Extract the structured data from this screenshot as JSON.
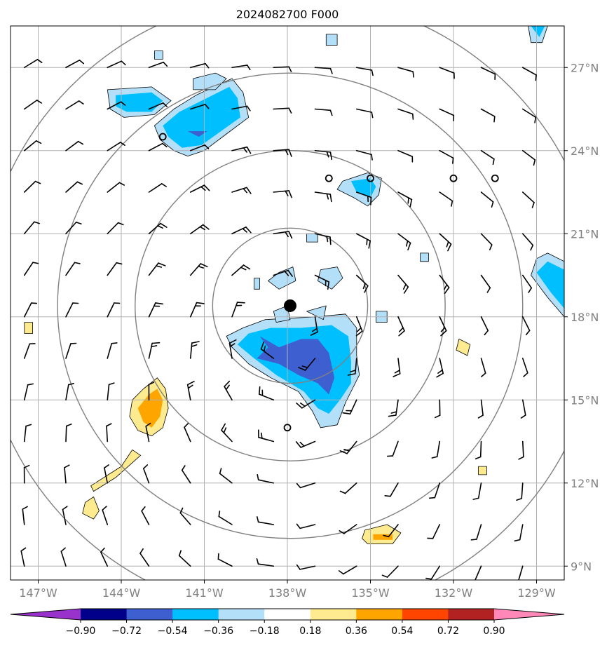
{
  "chart_data": {
    "type": "map",
    "title": "2024082700 F000",
    "lon_range": [
      -148,
      -128
    ],
    "lat_range": [
      8.5,
      28.5
    ],
    "lon_ticks": [
      -147,
      -144,
      -141,
      -138,
      -135,
      -132,
      -129
    ],
    "lon_tick_labels": [
      "147°W",
      "144°W",
      "141°W",
      "138°W",
      "135°W",
      "132°W",
      "129°W"
    ],
    "lat_ticks": [
      9,
      12,
      15,
      18,
      21,
      24,
      27
    ],
    "lat_tick_labels": [
      "9°N",
      "12°N",
      "15°N",
      "18°N",
      "21°N",
      "24°N",
      "27°N"
    ],
    "grid": true,
    "storm_center": {
      "lon": -137.9,
      "lat": 18.4
    },
    "range_ring_radii_deg": [
      2.8,
      5.6,
      8.4,
      11.2
    ],
    "colorbar": {
      "levels": [
        -0.9,
        -0.72,
        -0.54,
        -0.36,
        -0.18,
        0.18,
        0.36,
        0.54,
        0.72,
        0.9
      ],
      "level_labels": [
        "−0.90",
        "−0.72",
        "−0.54",
        "−0.36",
        "−0.18",
        "0.18",
        "0.36",
        "0.54",
        "0.72",
        "0.90"
      ],
      "colors": [
        "#9932cc",
        "#00008b",
        "#3e5fd0",
        "#00bfff",
        "#b3e0f8",
        "#ffffff",
        "#ffeb8f",
        "#ffa500",
        "#ff4500",
        "#b22222",
        "#ff88b8"
      ],
      "extend": "both"
    },
    "shaded_regions": [
      {
        "level": -0.18,
        "pts": [
          [
            -138.8,
            17.9
          ],
          [
            -137.0,
            18.0
          ],
          [
            -135.9,
            18.1
          ],
          [
            -135.5,
            17.6
          ],
          [
            -135.5,
            16.6
          ],
          [
            -135.4,
            15.9
          ],
          [
            -135.6,
            15.5
          ],
          [
            -135.9,
            14.9
          ],
          [
            -136.2,
            14.1
          ],
          [
            -136.8,
            14.0
          ],
          [
            -137.1,
            14.6
          ],
          [
            -137.6,
            15.3
          ],
          [
            -138.6,
            15.8
          ],
          [
            -139.4,
            16.3
          ],
          [
            -140.0,
            16.9
          ],
          [
            -140.2,
            17.3
          ],
          [
            -139.6,
            17.6
          ]
        ]
      },
      {
        "level": -0.36,
        "pts": [
          [
            -138.6,
            17.6
          ],
          [
            -137.5,
            17.6
          ],
          [
            -136.4,
            17.7
          ],
          [
            -135.8,
            17.3
          ],
          [
            -135.7,
            16.4
          ],
          [
            -135.7,
            15.6
          ],
          [
            -136.1,
            15.0
          ],
          [
            -136.5,
            14.5
          ],
          [
            -136.9,
            14.7
          ],
          [
            -137.4,
            15.3
          ],
          [
            -138.4,
            15.9
          ],
          [
            -139.2,
            16.5
          ],
          [
            -139.8,
            17.0
          ],
          [
            -139.4,
            17.4
          ]
        ]
      },
      {
        "level": -0.54,
        "pts": [
          [
            -139.0,
            17.3
          ],
          [
            -138.3,
            16.9
          ],
          [
            -137.5,
            17.2
          ],
          [
            -136.9,
            17.2
          ],
          [
            -136.5,
            16.7
          ],
          [
            -136.3,
            15.8
          ],
          [
            -136.5,
            15.2
          ],
          [
            -136.9,
            15.6
          ],
          [
            -137.6,
            15.9
          ],
          [
            -138.3,
            16.3
          ],
          [
            -139.1,
            16.5
          ],
          [
            -138.7,
            16.9
          ]
        ]
      },
      {
        "level": -0.18,
        "pts": [
          [
            -142.8,
            24.9
          ],
          [
            -142.1,
            25.5
          ],
          [
            -141.3,
            26.0
          ],
          [
            -140.0,
            26.6
          ],
          [
            -139.6,
            26.1
          ],
          [
            -139.4,
            25.2
          ],
          [
            -140.2,
            24.6
          ],
          [
            -141.0,
            24.0
          ],
          [
            -141.6,
            23.8
          ],
          [
            -142.1,
            24.0
          ],
          [
            -142.6,
            24.4
          ]
        ]
      },
      {
        "level": -0.36,
        "pts": [
          [
            -142.5,
            24.9
          ],
          [
            -141.9,
            25.4
          ],
          [
            -141.1,
            25.8
          ],
          [
            -140.1,
            26.3
          ],
          [
            -139.8,
            25.9
          ],
          [
            -139.7,
            25.2
          ],
          [
            -140.4,
            24.7
          ],
          [
            -141.1,
            24.2
          ],
          [
            -141.8,
            24.1
          ],
          [
            -142.3,
            24.5
          ]
        ]
      },
      {
        "level": -0.54,
        "pts": [
          [
            -141.6,
            24.7
          ],
          [
            -140.9,
            24.7
          ],
          [
            -141.2,
            24.5
          ]
        ]
      },
      {
        "level": -0.18,
        "pts": [
          [
            -144.5,
            26.2
          ],
          [
            -142.9,
            26.3
          ],
          [
            -142.2,
            25.8
          ],
          [
            -142.8,
            25.3
          ],
          [
            -143.9,
            25.2
          ],
          [
            -144.4,
            25.5
          ]
        ]
      },
      {
        "level": -0.36,
        "pts": [
          [
            -144.2,
            26.0
          ],
          [
            -142.9,
            26.1
          ],
          [
            -142.5,
            25.8
          ],
          [
            -142.9,
            25.4
          ],
          [
            -143.8,
            25.4
          ],
          [
            -144.2,
            25.6
          ]
        ]
      },
      {
        "level": -0.18,
        "pts": [
          [
            -141.4,
            26.6
          ],
          [
            -140.6,
            26.8
          ],
          [
            -140.2,
            26.6
          ],
          [
            -140.6,
            26.2
          ],
          [
            -141.4,
            26.2
          ]
        ]
      },
      {
        "level": -0.18,
        "pts": [
          [
            -136.0,
            22.9
          ],
          [
            -135.1,
            23.2
          ],
          [
            -134.6,
            23.0
          ],
          [
            -134.7,
            22.4
          ],
          [
            -135.1,
            22.0
          ],
          [
            -135.6,
            22.3
          ],
          [
            -136.2,
            22.6
          ]
        ]
      },
      {
        "level": -0.36,
        "pts": [
          [
            -135.7,
            22.9
          ],
          [
            -135.0,
            23.0
          ],
          [
            -134.8,
            22.7
          ],
          [
            -135.0,
            22.3
          ],
          [
            -135.5,
            22.5
          ]
        ]
      },
      {
        "level": -0.18,
        "pts": [
          [
            -128.6,
            20.3
          ],
          [
            -128.0,
            20.0
          ],
          [
            -128.0,
            18.0
          ],
          [
            -128.6,
            18.7
          ],
          [
            -129.2,
            19.5
          ],
          [
            -129.0,
            20.1
          ]
        ]
      },
      {
        "level": -0.36,
        "pts": [
          [
            -128.6,
            20.0
          ],
          [
            -128.0,
            19.7
          ],
          [
            -128.0,
            18.3
          ],
          [
            -128.5,
            18.9
          ],
          [
            -129.0,
            19.6
          ]
        ]
      },
      {
        "level": -0.18,
        "pts": [
          [
            -129.3,
            28.5
          ],
          [
            -128.6,
            28.5
          ],
          [
            -128.8,
            27.9
          ],
          [
            -129.2,
            27.9
          ]
        ]
      },
      {
        "level": -0.36,
        "pts": [
          [
            -129.2,
            28.5
          ],
          [
            -128.7,
            28.5
          ],
          [
            -128.9,
            28.1
          ]
        ]
      },
      {
        "level": -0.18,
        "pts": [
          [
            -138.3,
            19.6
          ],
          [
            -137.8,
            19.8
          ],
          [
            -137.7,
            19.3
          ],
          [
            -138.3,
            19.0
          ],
          [
            -138.7,
            19.3
          ]
        ]
      },
      {
        "level": -0.18,
        "pts": [
          [
            -139.2,
            19.4
          ],
          [
            -139.0,
            19.4
          ],
          [
            -139.0,
            19.0
          ],
          [
            -139.2,
            19.0
          ]
        ]
      },
      {
        "level": -0.18,
        "pts": [
          [
            -136.8,
            19.7
          ],
          [
            -136.2,
            19.8
          ],
          [
            -136.0,
            19.4
          ],
          [
            -136.4,
            19.0
          ],
          [
            -136.9,
            19.3
          ]
        ]
      },
      {
        "level": -0.18,
        "pts": [
          [
            -137.3,
            21.0
          ],
          [
            -136.9,
            21.0
          ],
          [
            -136.9,
            20.7
          ],
          [
            -137.3,
            20.7
          ]
        ]
      },
      {
        "level": -0.18,
        "pts": [
          [
            -138.5,
            18.2
          ],
          [
            -138.0,
            18.4
          ],
          [
            -137.9,
            17.9
          ],
          [
            -138.4,
            17.8
          ]
        ]
      },
      {
        "level": -0.18,
        "pts": [
          [
            -137.3,
            18.2
          ],
          [
            -136.6,
            18.4
          ],
          [
            -136.7,
            17.9
          ]
        ]
      },
      {
        "level": -0.18,
        "pts": [
          [
            -134.8,
            18.2
          ],
          [
            -134.4,
            18.2
          ],
          [
            -134.4,
            17.8
          ],
          [
            -134.8,
            17.8
          ]
        ]
      },
      {
        "level": -0.18,
        "pts": [
          [
            -133.2,
            20.3
          ],
          [
            -132.9,
            20.3
          ],
          [
            -132.9,
            20.0
          ],
          [
            -133.2,
            20.0
          ]
        ]
      },
      {
        "level": -0.18,
        "pts": [
          [
            -136.6,
            28.2
          ],
          [
            -136.2,
            28.2
          ],
          [
            -136.2,
            27.8
          ],
          [
            -136.6,
            27.8
          ]
        ]
      },
      {
        "level": -0.18,
        "pts": [
          [
            -142.8,
            27.6
          ],
          [
            -142.5,
            27.6
          ],
          [
            -142.5,
            27.3
          ],
          [
            -142.8,
            27.3
          ]
        ]
      },
      {
        "level": 0.18,
        "pts": [
          [
            -143.2,
            15.4
          ],
          [
            -142.7,
            15.8
          ],
          [
            -142.4,
            15.4
          ],
          [
            -142.3,
            14.7
          ],
          [
            -142.5,
            14.0
          ],
          [
            -142.9,
            13.7
          ],
          [
            -143.4,
            13.9
          ],
          [
            -143.7,
            14.4
          ],
          [
            -143.6,
            15.0
          ]
        ]
      },
      {
        "level": 0.36,
        "pts": [
          [
            -143.0,
            15.2
          ],
          [
            -142.7,
            15.4
          ],
          [
            -142.5,
            15.0
          ],
          [
            -142.6,
            14.4
          ],
          [
            -142.9,
            14.0
          ],
          [
            -143.2,
            14.2
          ],
          [
            -143.4,
            14.7
          ]
        ]
      },
      {
        "level": 0.18,
        "pts": [
          [
            -145.1,
            11.9
          ],
          [
            -144.0,
            12.6
          ],
          [
            -143.6,
            13.2
          ],
          [
            -143.3,
            13.0
          ],
          [
            -144.2,
            12.2
          ],
          [
            -145.0,
            11.7
          ]
        ]
      },
      {
        "level": 0.18,
        "pts": [
          [
            -145.3,
            11.3
          ],
          [
            -145.0,
            11.5
          ],
          [
            -144.8,
            11.0
          ],
          [
            -145.0,
            10.7
          ],
          [
            -145.4,
            10.9
          ]
        ]
      },
      {
        "level": 0.18,
        "pts": [
          [
            -147.5,
            17.8
          ],
          [
            -147.2,
            17.8
          ],
          [
            -147.2,
            17.4
          ],
          [
            -147.5,
            17.4
          ]
        ]
      },
      {
        "level": 0.18,
        "pts": [
          [
            -135.2,
            10.3
          ],
          [
            -134.4,
            10.5
          ],
          [
            -133.9,
            10.2
          ],
          [
            -134.2,
            9.8
          ],
          [
            -135.1,
            9.8
          ],
          [
            -135.3,
            10.0
          ]
        ]
      },
      {
        "level": 0.36,
        "pts": [
          [
            -134.9,
            10.15
          ],
          [
            -134.2,
            10.15
          ],
          [
            -134.2,
            9.95
          ],
          [
            -134.9,
            9.95
          ]
        ]
      },
      {
        "level": 0.18,
        "pts": [
          [
            -131.1,
            12.6
          ],
          [
            -130.8,
            12.6
          ],
          [
            -130.8,
            12.3
          ],
          [
            -131.1,
            12.3
          ]
        ]
      },
      {
        "level": 0.18,
        "pts": [
          [
            -131.8,
            17.2
          ],
          [
            -131.4,
            17.0
          ],
          [
            -131.5,
            16.6
          ],
          [
            -131.9,
            16.8
          ]
        ]
      }
    ]
  }
}
